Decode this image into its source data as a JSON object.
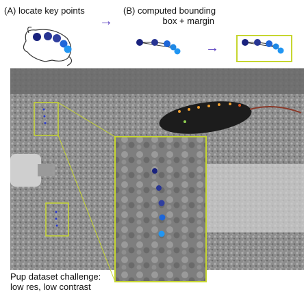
{
  "panel_a": {
    "label": "(A) locate key points"
  },
  "panel_b": {
    "label_lines": [
      "(B) computed bounding",
      "box + margin"
    ]
  },
  "caption": {
    "lines": [
      "Pup dataset challenge:",
      "low res, low contrast"
    ]
  }
}
